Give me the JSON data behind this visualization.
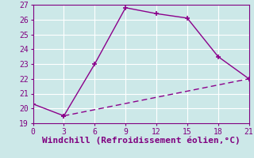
{
  "line1_x": [
    0,
    3,
    6,
    9,
    12,
    15,
    18,
    21
  ],
  "line1_y": [
    20.3,
    19.5,
    23.0,
    26.8,
    26.4,
    26.1,
    23.5,
    22.0
  ],
  "line2_x": [
    3,
    21
  ],
  "line2_y": [
    19.5,
    22.0
  ],
  "line_color": "#8b008b",
  "xlabel": "Windchill (Refroidissement éolien,°C)",
  "xlim": [
    0,
    21
  ],
  "ylim": [
    19,
    27
  ],
  "xticks": [
    0,
    3,
    6,
    9,
    12,
    15,
    18,
    21
  ],
  "yticks": [
    19,
    20,
    21,
    22,
    23,
    24,
    25,
    26,
    27
  ],
  "bg_color": "#cce8e8",
  "grid_color": "#b0d8d8",
  "font_color": "#800080",
  "tick_fontsize": 7,
  "xlabel_fontsize": 8
}
